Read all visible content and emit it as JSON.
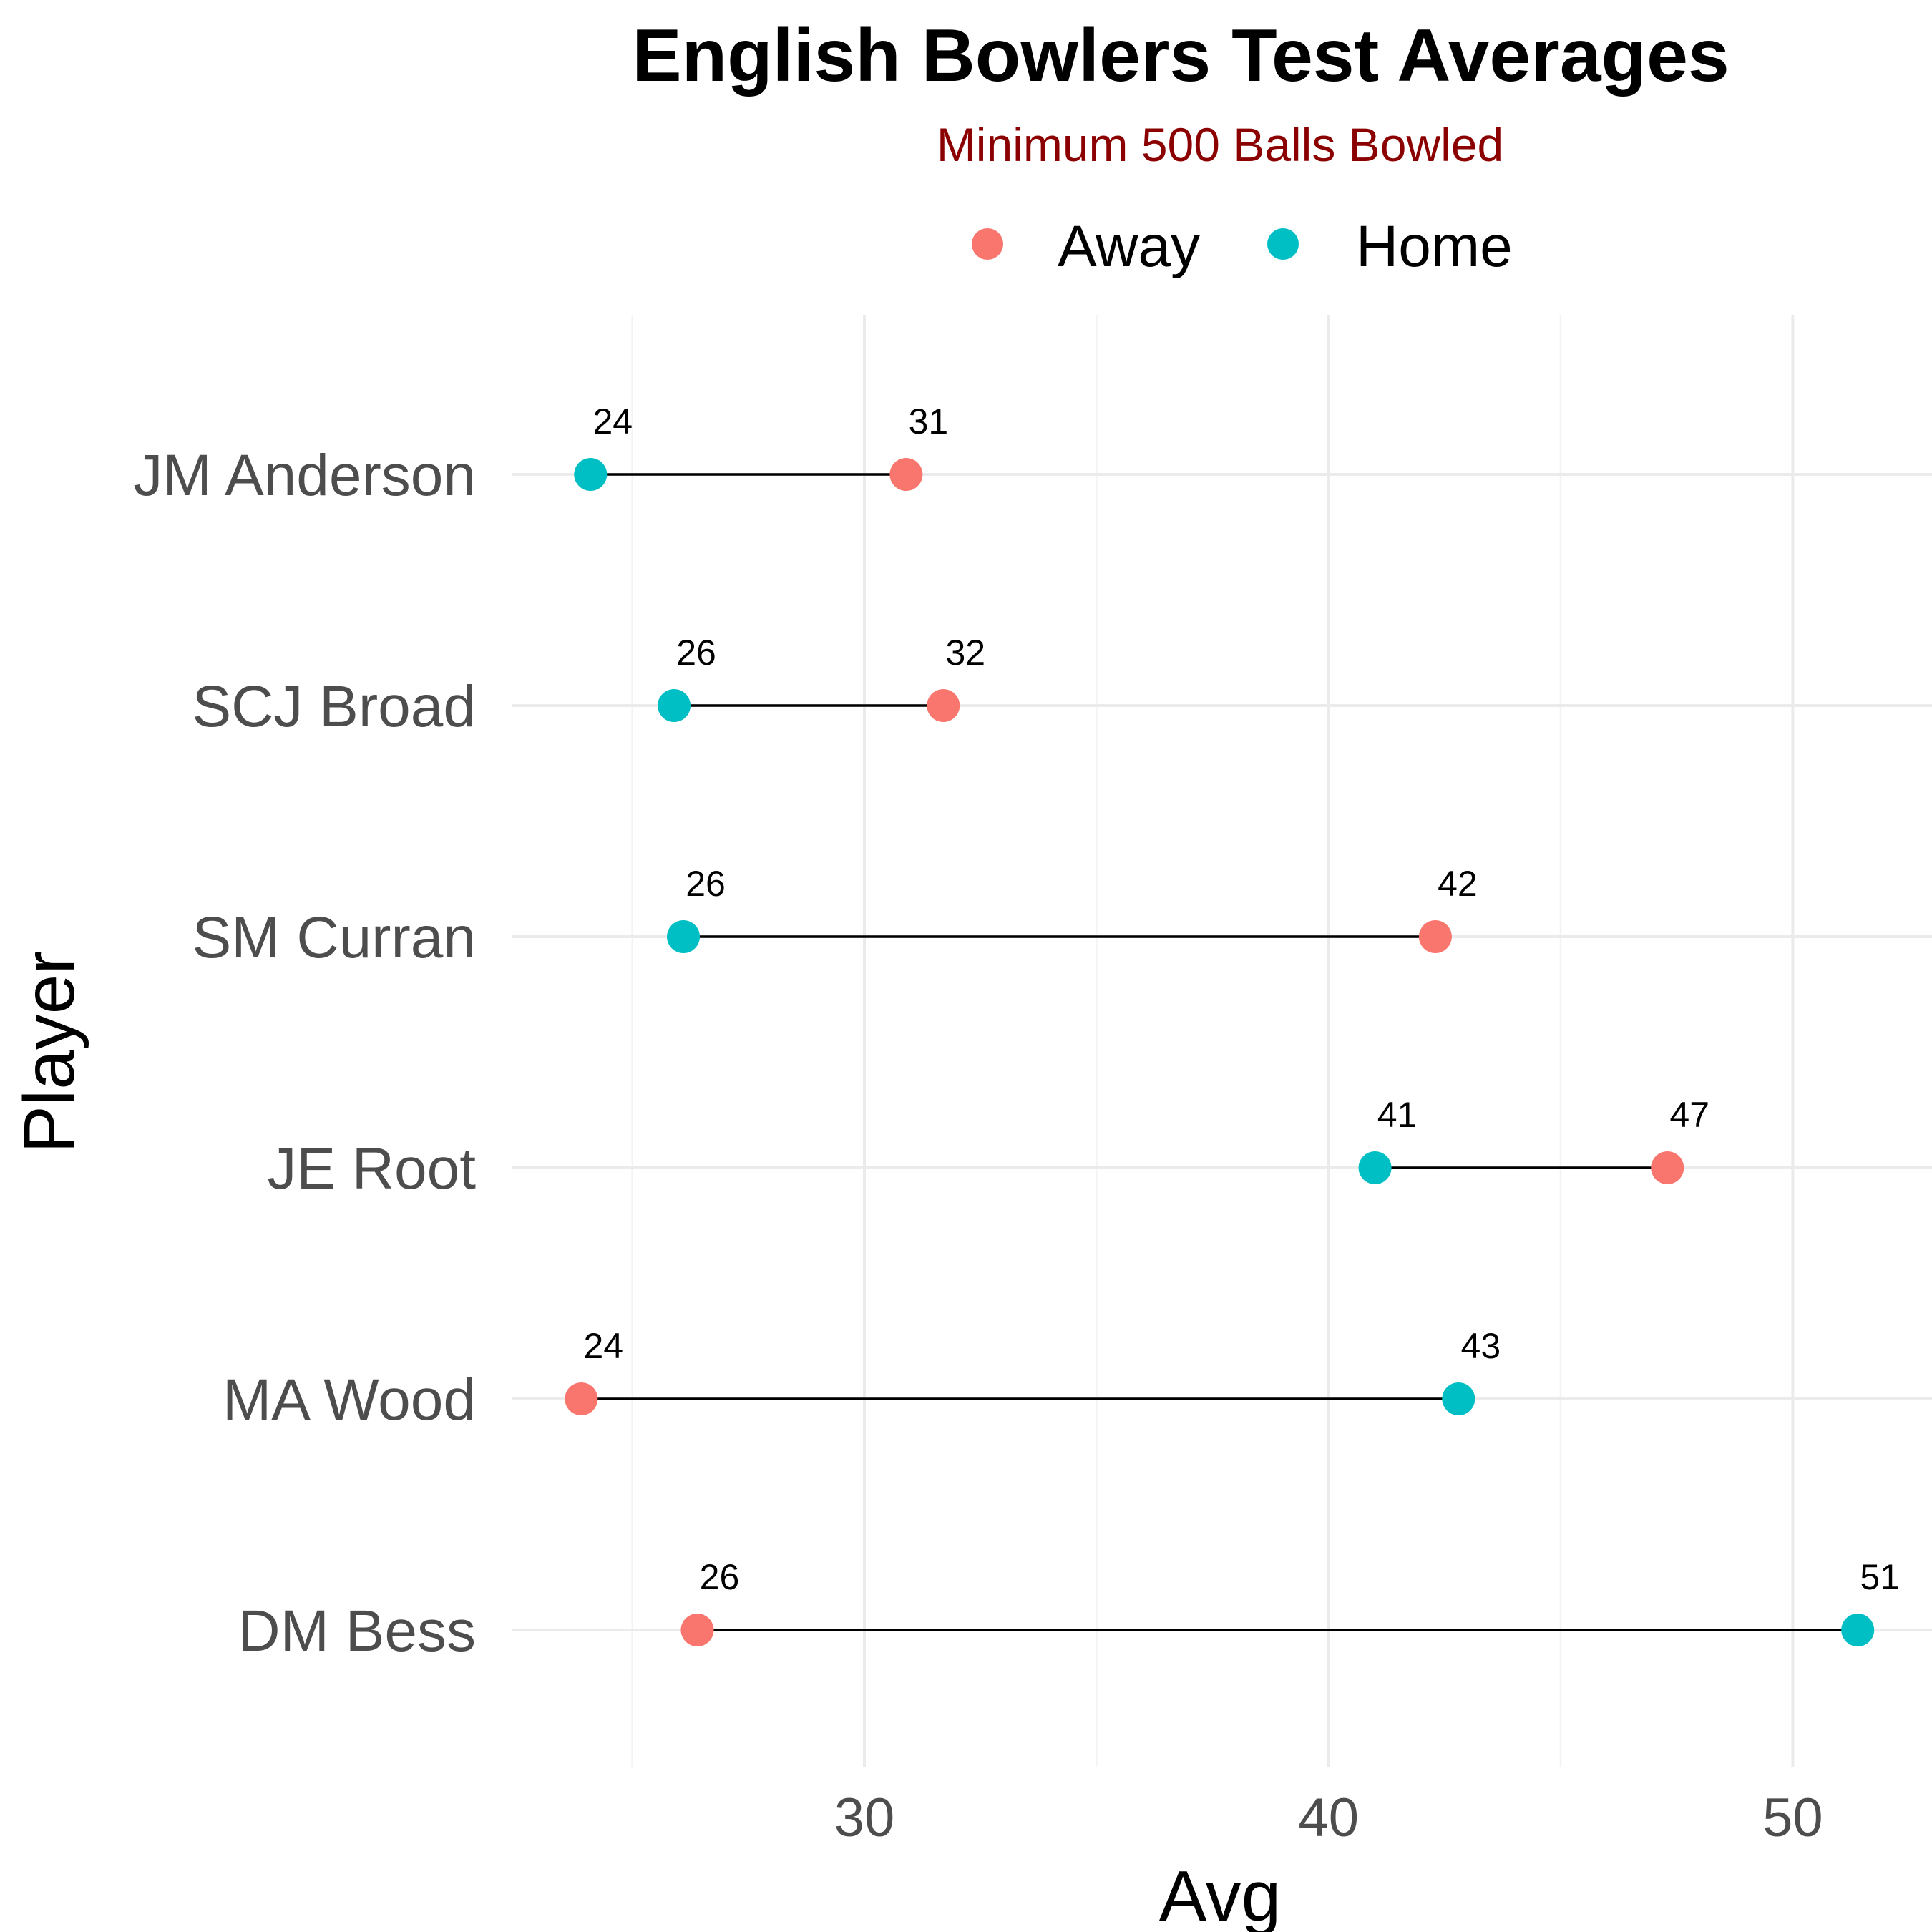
{
  "chart_data": {
    "type": "dumbbell",
    "title": "English Bowlers Test Averages",
    "subtitle": "Minimum 500 Balls Bowled",
    "xlabel": "Avg",
    "ylabel": "Player",
    "xlim": [
      22.4,
      53.0
    ],
    "x_ticks": [
      30,
      40,
      50
    ],
    "grid": true,
    "legend_position": "top",
    "series": [
      {
        "name": "Away",
        "color": "#F8766D"
      },
      {
        "name": "Home",
        "color": "#00BFC4"
      }
    ],
    "players": [
      {
        "name": "JM Anderson",
        "away": 30.9,
        "home": 24.1,
        "away_label": "31",
        "home_label": "24"
      },
      {
        "name": "SCJ Broad",
        "away": 31.7,
        "home": 25.9,
        "away_label": "32",
        "home_label": "26"
      },
      {
        "name": "SM Curran",
        "away": 42.3,
        "home": 26.1,
        "away_label": "42",
        "home_label": "26"
      },
      {
        "name": "JE Root",
        "away": 47.3,
        "home": 41.0,
        "away_label": "47",
        "home_label": "41"
      },
      {
        "name": "MA Wood",
        "away": 23.9,
        "home": 42.8,
        "away_label": "24",
        "home_label": "43"
      },
      {
        "name": "DM Bess",
        "away": 26.4,
        "home": 51.4,
        "away_label": "26",
        "home_label": "51"
      }
    ],
    "colors": {
      "subtitle": "#8B0000"
    }
  }
}
